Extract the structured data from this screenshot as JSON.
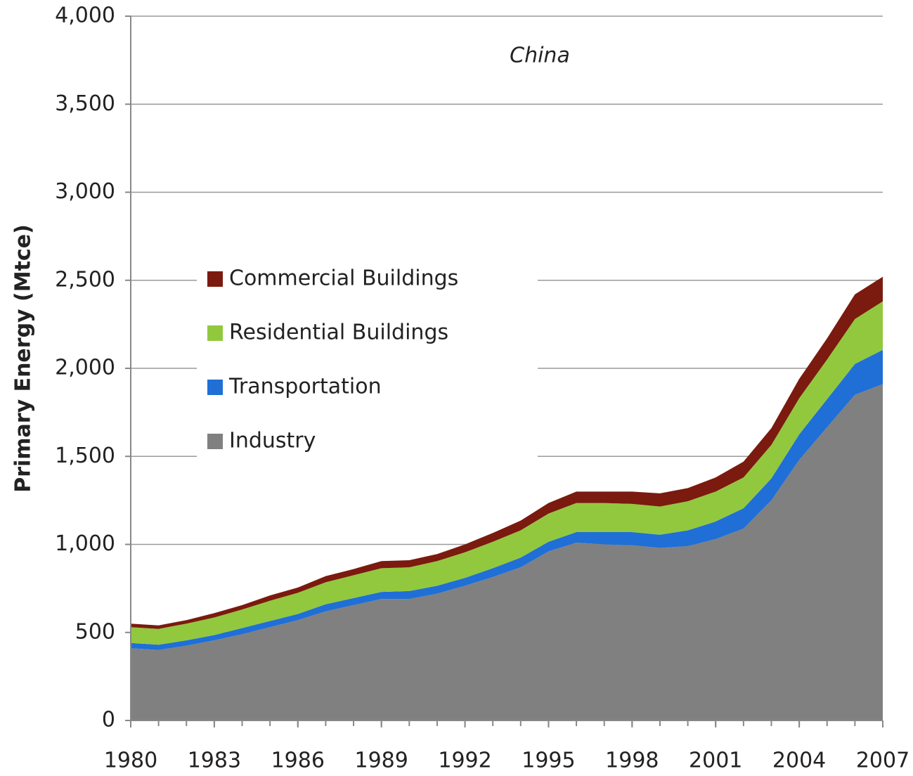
{
  "chart_data": {
    "type": "area",
    "stacked": true,
    "title": "China",
    "y_label": "Primary Energy (Mtce)",
    "x": [
      1980,
      1981,
      1982,
      1983,
      1984,
      1985,
      1986,
      1987,
      1988,
      1989,
      1990,
      1991,
      1992,
      1993,
      1994,
      1995,
      1996,
      1997,
      1998,
      1999,
      2000,
      2001,
      2002,
      2003,
      2004,
      2005,
      2006,
      2007
    ],
    "series": [
      {
        "name": "Industry",
        "color": "#808080",
        "values": [
          410,
          400,
          425,
          455,
          490,
          530,
          570,
          620,
          655,
          690,
          690,
          720,
          765,
          815,
          870,
          960,
          1010,
          1000,
          995,
          980,
          990,
          1030,
          1090,
          1250,
          1480,
          1665,
          1850,
          1910
        ]
      },
      {
        "name": "Transportation",
        "color": "#1f6fd6",
        "values": [
          30,
          30,
          30,
          30,
          35,
          35,
          35,
          40,
          40,
          40,
          45,
          45,
          45,
          50,
          55,
          55,
          60,
          70,
          75,
          75,
          90,
          100,
          115,
          125,
          145,
          160,
          175,
          195
        ]
      },
      {
        "name": "Residential Buildings",
        "color": "#92c83e",
        "values": [
          90,
          90,
          95,
          100,
          105,
          115,
          120,
          125,
          130,
          135,
          135,
          140,
          145,
          150,
          155,
          160,
          165,
          165,
          160,
          160,
          165,
          170,
          175,
          190,
          205,
          225,
          255,
          275
        ]
      },
      {
        "name": "Commercial Buildings",
        "color": "#7b1a0e",
        "values": [
          20,
          20,
          20,
          25,
          25,
          30,
          30,
          35,
          35,
          40,
          40,
          40,
          45,
          50,
          55,
          60,
          65,
          65,
          70,
          75,
          75,
          80,
          90,
          95,
          110,
          120,
          140,
          140
        ]
      }
    ],
    "xlim": [
      1980,
      2007
    ],
    "xticks": [
      1980,
      1983,
      1986,
      1989,
      1992,
      1995,
      1998,
      2001,
      2004,
      2007
    ],
    "ylim": [
      0,
      4000
    ],
    "yticks": [
      0,
      500,
      {
        "value": 1000,
        "label": "1,000"
      },
      {
        "value": 1500,
        "label": "1,500"
      },
      {
        "value": 2000,
        "label": "2,000"
      },
      {
        "value": 2500,
        "label": "2,500"
      },
      {
        "value": 3000,
        "label": "3,000"
      },
      {
        "value": 3500,
        "label": "3,500"
      },
      {
        "value": 4000,
        "label": "4,000"
      }
    ],
    "grid": true,
    "legend": "left"
  }
}
